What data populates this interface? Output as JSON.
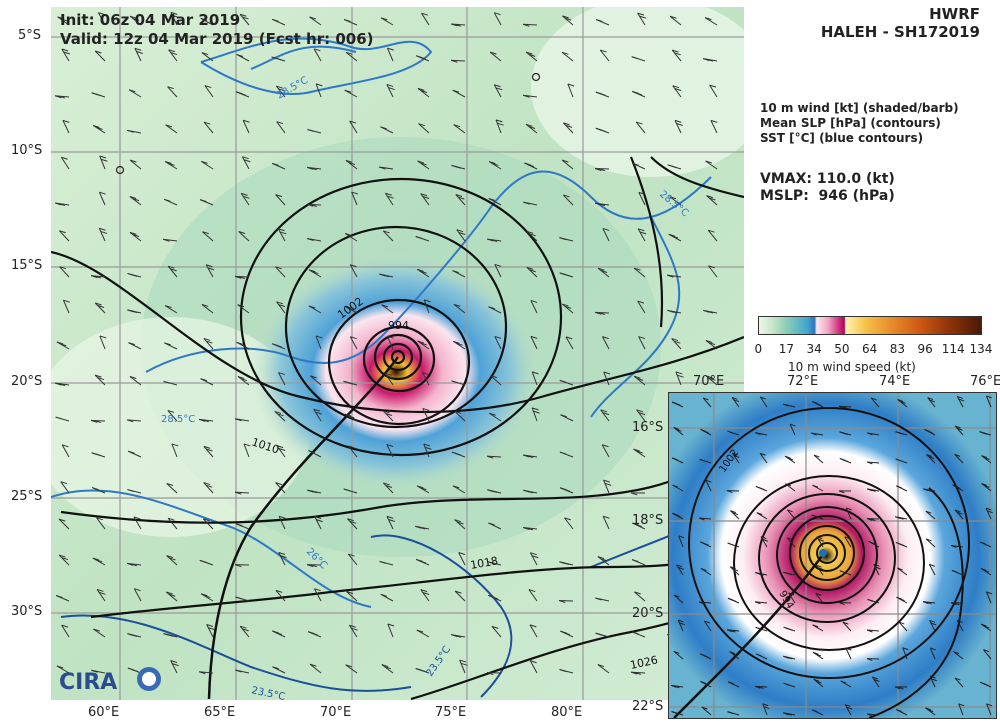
{
  "header": {
    "init": "Init:   06z 04 Mar 2019",
    "valid": "Valid: 12z 04 Mar 2019 (Fcst hr: 006)",
    "model": "HWRF",
    "storm": "HALEH - SH172019"
  },
  "legend": {
    "line1": "10 m wind [kt] (shaded/barb)",
    "line2": "Mean SLP [hPa] (contours)",
    "line3": "SST [°C] (blue contours)"
  },
  "stats": {
    "vmax": "VMAX: 110.0 (kt)",
    "mslp": "MSLP:  946 (hPa)"
  },
  "colorbar": {
    "label": "10 m wind speed (kt)",
    "ticks": [
      "0",
      "17",
      "34",
      "50",
      "64",
      "83",
      "96",
      "114",
      "134"
    ]
  },
  "main_map": {
    "lat_labels": [
      "5°S",
      "10°S",
      "15°S",
      "20°S",
      "25°S",
      "30°S"
    ],
    "lon_labels": [
      "60°E",
      "65°E",
      "70°E",
      "75°E",
      "80°E"
    ],
    "slp_labels": [
      "994",
      "1002",
      "1010",
      "1018",
      "1026"
    ],
    "sst_labels": [
      "28.5°C",
      "28.5°C",
      "28.5°C",
      "26°C",
      "23.5°C",
      "23.5°C"
    ],
    "logo": "CIRA"
  },
  "inset_map": {
    "lon_labels": [
      "70°E",
      "72°E",
      "74°E",
      "76°E"
    ],
    "lat_labels": [
      "16°S",
      "18°S",
      "20°S",
      "22°S"
    ],
    "slp_labels": [
      "1002",
      "994"
    ]
  }
}
